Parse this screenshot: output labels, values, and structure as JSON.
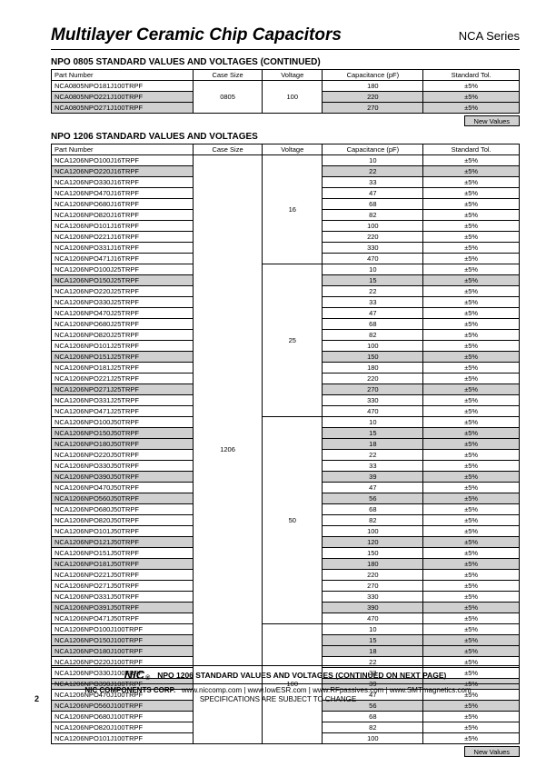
{
  "header": {
    "title": "Multilayer Ceramic Chip Capacitors",
    "series": "NCA Series"
  },
  "section1": {
    "title": "NPO 0805 STANDARD VALUES AND VOLTAGES (CONTINUED)",
    "headers": [
      "Part Number",
      "Case Size",
      "Voltage",
      "Capacitance (pF)",
      "Standard Tol."
    ],
    "case_size": "0805",
    "voltage": "100",
    "rows": [
      {
        "pn": "NCA0805NPO181J100TRPF",
        "cap": "180",
        "tol": "±5%",
        "shade": false
      },
      {
        "pn": "NCA0805NPO221J100TRPF",
        "cap": "220",
        "tol": "±5%",
        "shade": true
      },
      {
        "pn": "NCA0805NPO271J100TRPF",
        "cap": "270",
        "tol": "±5%",
        "shade": true
      }
    ],
    "new_values": "New Values"
  },
  "section2": {
    "title": "NPO 1206 STANDARD VALUES AND VOLTAGES",
    "headers": [
      "Part Number",
      "Case Size",
      "Voltage",
      "Capacitance (pF)",
      "Standard Tol."
    ],
    "case_size": "1206",
    "groups": [
      {
        "voltage": "16",
        "rows": [
          {
            "pn": "NCA1206NPO100J16TRPF",
            "cap": "10",
            "tol": "±5%",
            "shade": false
          },
          {
            "pn": "NCA1206NPO220J16TRPF",
            "cap": "22",
            "tol": "±5%",
            "shade": true
          },
          {
            "pn": "NCA1206NPO330J16TRPF",
            "cap": "33",
            "tol": "±5%",
            "shade": false
          },
          {
            "pn": "NCA1206NPO470J16TRPF",
            "cap": "47",
            "tol": "±5%",
            "shade": false
          },
          {
            "pn": "NCA1206NPO680J16TRPF",
            "cap": "68",
            "tol": "±5%",
            "shade": false
          },
          {
            "pn": "NCA1206NPO820J16TRPF",
            "cap": "82",
            "tol": "±5%",
            "shade": false
          },
          {
            "pn": "NCA1206NPO101J16TRPF",
            "cap": "100",
            "tol": "±5%",
            "shade": false
          },
          {
            "pn": "NCA1206NPO221J16TRPF",
            "cap": "220",
            "tol": "±5%",
            "shade": false
          },
          {
            "pn": "NCA1206NPO331J16TRPF",
            "cap": "330",
            "tol": "±5%",
            "shade": false
          },
          {
            "pn": "NCA1206NPO471J16TRPF",
            "cap": "470",
            "tol": "±5%",
            "shade": false
          }
        ]
      },
      {
        "voltage": "25",
        "rows": [
          {
            "pn": "NCA1206NPO100J25TRPF",
            "cap": "10",
            "tol": "±5%",
            "shade": false
          },
          {
            "pn": "NCA1206NPO150J25TRPF",
            "cap": "15",
            "tol": "±5%",
            "shade": true
          },
          {
            "pn": "NCA1206NPO220J25TRPF",
            "cap": "22",
            "tol": "±5%",
            "shade": false
          },
          {
            "pn": "NCA1206NPO330J25TRPF",
            "cap": "33",
            "tol": "±5%",
            "shade": false
          },
          {
            "pn": "NCA1206NPO470J25TRPF",
            "cap": "47",
            "tol": "±5%",
            "shade": false
          },
          {
            "pn": "NCA1206NPO680J25TRPF",
            "cap": "68",
            "tol": "±5%",
            "shade": false
          },
          {
            "pn": "NCA1206NPO820J25TRPF",
            "cap": "82",
            "tol": "±5%",
            "shade": false
          },
          {
            "pn": "NCA1206NPO101J25TRPF",
            "cap": "100",
            "tol": "±5%",
            "shade": false
          },
          {
            "pn": "NCA1206NPO151J25TRPF",
            "cap": "150",
            "tol": "±5%",
            "shade": true
          },
          {
            "pn": "NCA1206NPO181J25TRPF",
            "cap": "180",
            "tol": "±5%",
            "shade": false
          },
          {
            "pn": "NCA1206NPO221J25TRPF",
            "cap": "220",
            "tol": "±5%",
            "shade": false
          },
          {
            "pn": "NCA1206NPO271J25TRPF",
            "cap": "270",
            "tol": "±5%",
            "shade": true
          },
          {
            "pn": "NCA1206NPO331J25TRPF",
            "cap": "330",
            "tol": "±5%",
            "shade": false
          },
          {
            "pn": "NCA1206NPO471J25TRPF",
            "cap": "470",
            "tol": "±5%",
            "shade": false
          }
        ]
      },
      {
        "voltage": "50",
        "rows": [
          {
            "pn": "NCA1206NPO100J50TRPF",
            "cap": "10",
            "tol": "±5%",
            "shade": false
          },
          {
            "pn": "NCA1206NPO150J50TRPF",
            "cap": "15",
            "tol": "±5%",
            "shade": true
          },
          {
            "pn": "NCA1206NPO180J50TRPF",
            "cap": "18",
            "tol": "±5%",
            "shade": true
          },
          {
            "pn": "NCA1206NPO220J50TRPF",
            "cap": "22",
            "tol": "±5%",
            "shade": false
          },
          {
            "pn": "NCA1206NPO330J50TRPF",
            "cap": "33",
            "tol": "±5%",
            "shade": false
          },
          {
            "pn": "NCA1206NPO390J50TRPF",
            "cap": "39",
            "tol": "±5%",
            "shade": true
          },
          {
            "pn": "NCA1206NPO470J50TRPF",
            "cap": "47",
            "tol": "±5%",
            "shade": false
          },
          {
            "pn": "NCA1206NPO560J50TRPF",
            "cap": "56",
            "tol": "±5%",
            "shade": true
          },
          {
            "pn": "NCA1206NPO680J50TRPF",
            "cap": "68",
            "tol": "±5%",
            "shade": false
          },
          {
            "pn": "NCA1206NPO820J50TRPF",
            "cap": "82",
            "tol": "±5%",
            "shade": false
          },
          {
            "pn": "NCA1206NPO101J50TRPF",
            "cap": "100",
            "tol": "±5%",
            "shade": false
          },
          {
            "pn": "NCA1206NPO121J50TRPF",
            "cap": "120",
            "tol": "±5%",
            "shade": true
          },
          {
            "pn": "NCA1206NPO151J50TRPF",
            "cap": "150",
            "tol": "±5%",
            "shade": false
          },
          {
            "pn": "NCA1206NPO181J50TRPF",
            "cap": "180",
            "tol": "±5%",
            "shade": true
          },
          {
            "pn": "NCA1206NPO221J50TRPF",
            "cap": "220",
            "tol": "±5%",
            "shade": false
          },
          {
            "pn": "NCA1206NPO271J50TRPF",
            "cap": "270",
            "tol": "±5%",
            "shade": false
          },
          {
            "pn": "NCA1206NPO331J50TRPF",
            "cap": "330",
            "tol": "±5%",
            "shade": false
          },
          {
            "pn": "NCA1206NPO391J50TRPF",
            "cap": "390",
            "tol": "±5%",
            "shade": true
          },
          {
            "pn": "NCA1206NPO471J50TRPF",
            "cap": "470",
            "tol": "±5%",
            "shade": false
          }
        ]
      },
      {
        "voltage": "100",
        "rows": [
          {
            "pn": "NCA1206NPO100J100TRPF",
            "cap": "10",
            "tol": "±5%",
            "shade": false
          },
          {
            "pn": "NCA1206NPO150J100TRPF",
            "cap": "15",
            "tol": "±5%",
            "shade": true
          },
          {
            "pn": "NCA1206NPO180J100TRPF",
            "cap": "18",
            "tol": "±5%",
            "shade": true
          },
          {
            "pn": "NCA1206NPO220J100TRPF",
            "cap": "22",
            "tol": "±5%",
            "shade": false
          },
          {
            "pn": "NCA1206NPO330J100TRPF",
            "cap": "33",
            "tol": "±5%",
            "shade": false
          },
          {
            "pn": "NCA1206NPO390J100TRPF",
            "cap": "39",
            "tol": "±5%",
            "shade": true
          },
          {
            "pn": "NCA1206NPO470J100TRPF",
            "cap": "47",
            "tol": "±5%",
            "shade": false
          },
          {
            "pn": "NCA1206NPO560J100TRPF",
            "cap": "56",
            "tol": "±5%",
            "shade": true
          },
          {
            "pn": "NCA1206NPO680J100TRPF",
            "cap": "68",
            "tol": "±5%",
            "shade": false
          },
          {
            "pn": "NCA1206NPO820J100TRPF",
            "cap": "82",
            "tol": "±5%",
            "shade": false
          },
          {
            "pn": "NCA1206NPO101J100TRPF",
            "cap": "100",
            "tol": "±5%",
            "shade": false
          }
        ]
      }
    ],
    "new_values": "New Values"
  },
  "footer": {
    "continue": "NPO 1206 STANDARD VALUES AND VOLTAGES (CONTINUED ON NEXT PAGE)",
    "corp": "NIC COMPONENTS CORP.",
    "links": "www.niccomp.com   |   www.lowESR.com   |   www.RFpassives.com   |   www.SMTmagnetics.com",
    "spec": "SPECIFICATIONS ARE SUBJECT TO CHANGE",
    "page_num": "2"
  }
}
